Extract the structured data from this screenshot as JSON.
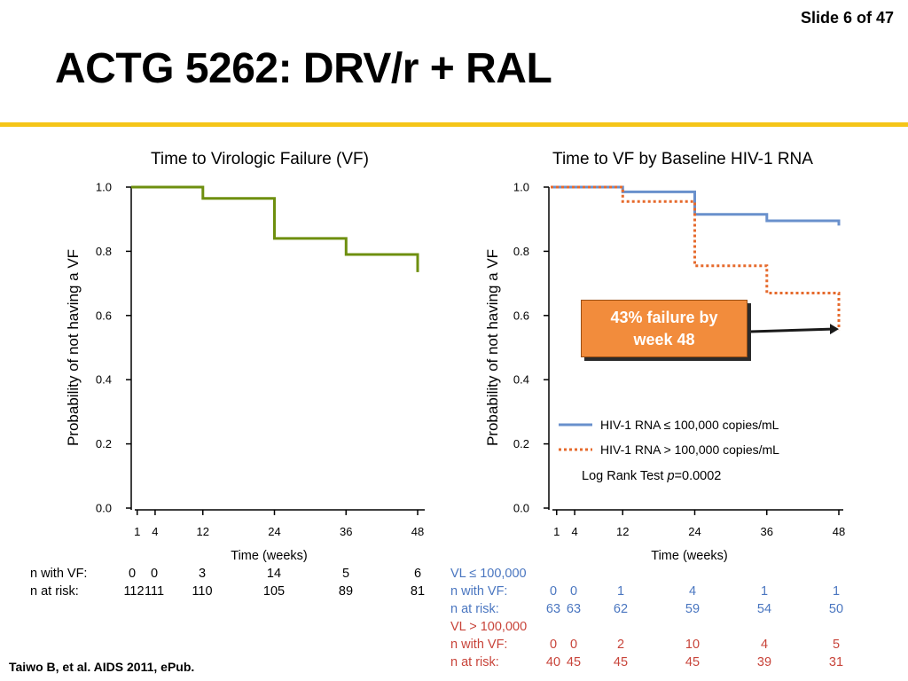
{
  "slide_number": "Slide 6 of 47",
  "title": "ACTG 5262: DRV/r + RAL",
  "citation": "Taiwo B, et al. AIDS 2011, ePub.",
  "colors": {
    "accent_rule": "#f5c518",
    "green": "#6e8f0f",
    "blue": "#6990cc",
    "orange": "#e66a2c",
    "callout_fill": "#f28c3c"
  },
  "callout": {
    "line1": "43% failure by",
    "line2": "week 48"
  },
  "chart_data": [
    {
      "type": "line",
      "step": true,
      "title": "Time to Virologic Failure (VF)",
      "xlabel": "Time (weeks)",
      "ylabel": "Probability of not having a VF",
      "xlim": [
        0,
        48
      ],
      "ylim": [
        0,
        1
      ],
      "x_ticks": [
        1,
        4,
        12,
        24,
        36,
        48
      ],
      "y_ticks": [
        "0.0",
        "0.2",
        "0.4",
        "0.6",
        "0.8",
        "1.0"
      ],
      "series": [
        {
          "color": "#6e8f0f",
          "style": "solid",
          "points": [
            [
              0,
              1.0
            ],
            [
              12,
              1.0
            ],
            [
              12,
              0.965
            ],
            [
              24,
              0.965
            ],
            [
              24,
              0.84
            ],
            [
              36,
              0.84
            ],
            [
              36,
              0.79
            ],
            [
              48,
              0.79
            ],
            [
              48,
              0.735
            ]
          ]
        }
      ],
      "risk_table": {
        "rows": [
          {
            "label": "n with VF:",
            "values": [
              "0",
              "0",
              "3",
              "14",
              "5",
              "6"
            ]
          },
          {
            "label": "n at risk:",
            "values": [
              "112",
              "111",
              "110",
              "105",
              "89",
              "81"
            ]
          }
        ]
      }
    },
    {
      "type": "line",
      "step": true,
      "title": "Time to VF by Baseline HIV-1 RNA",
      "xlabel": "Time (weeks)",
      "ylabel": "Probability of not having a VF",
      "xlim": [
        0,
        48
      ],
      "ylim": [
        0,
        1
      ],
      "x_ticks": [
        1,
        4,
        12,
        24,
        36,
        48
      ],
      "y_ticks": [
        "0.0",
        "0.2",
        "0.4",
        "0.6",
        "0.8",
        "1.0"
      ],
      "legend_position": "lower-right",
      "annotation_prefix": "Log Rank Test ",
      "annotation_p": "p",
      "annotation_value": "=0.0002",
      "series": [
        {
          "name": "HIV-1 RNA ≤ 100,000 copies/mL",
          "color": "#6990cc",
          "style": "solid",
          "points": [
            [
              0,
              1.0
            ],
            [
              12,
              1.0
            ],
            [
              12,
              0.985
            ],
            [
              24,
              0.985
            ],
            [
              24,
              0.915
            ],
            [
              36,
              0.915
            ],
            [
              36,
              0.895
            ],
            [
              48,
              0.895
            ],
            [
              48,
              0.88
            ]
          ]
        },
        {
          "name": "HIV-1 RNA > 100,000 copies/mL",
          "color": "#e66a2c",
          "style": "dotted",
          "points": [
            [
              0,
              1.0
            ],
            [
              12,
              1.0
            ],
            [
              12,
              0.955
            ],
            [
              24,
              0.955
            ],
            [
              24,
              0.755
            ],
            [
              36,
              0.755
            ],
            [
              36,
              0.67
            ],
            [
              48,
              0.67
            ],
            [
              48,
              0.555
            ]
          ]
        }
      ],
      "risk_table": {
        "groups": [
          {
            "header": "VL ≤ 100,000",
            "color": "#4a76c0",
            "rows": [
              {
                "label": "n with VF:",
                "values": [
                  "0",
                  "0",
                  "1",
                  "4",
                  "1",
                  "1"
                ]
              },
              {
                "label": "n at risk:",
                "values": [
                  "63",
                  "63",
                  "62",
                  "59",
                  "54",
                  "50"
                ]
              }
            ]
          },
          {
            "header": "VL > 100,000",
            "color": "#c8443a",
            "rows": [
              {
                "label": "n with VF:",
                "values": [
                  "0",
                  "0",
                  "2",
                  "10",
                  "4",
                  "5"
                ]
              },
              {
                "label": "n at risk:",
                "values": [
                  "40",
                  "45",
                  "45",
                  "45",
                  "39",
                  "31"
                ]
              }
            ]
          }
        ]
      }
    }
  ]
}
